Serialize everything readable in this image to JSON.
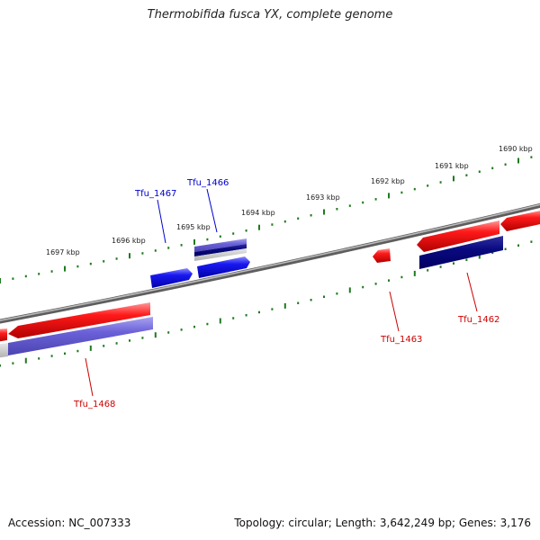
{
  "title": "Thermobifida fusca YX, complete genome",
  "footer": {
    "accession": "Accession: NC_007333",
    "topology": "Topology: circular; Length: 3,642,249 bp; Genes: 3,176"
  },
  "scale_labels": [
    "1697 kbp",
    "1696 kbp",
    "1695 kbp",
    "1694 kbp",
    "1693 kbp",
    "1692 kbp",
    "1691 kbp",
    "1690 kbp"
  ],
  "genes": [
    {
      "name": "Tfu_1468",
      "strand": "reverse",
      "color": "#cc0000"
    },
    {
      "name": "Tfu_1467",
      "strand": "forward",
      "color": "#0000cc"
    },
    {
      "name": "Tfu_1466",
      "strand": "forward",
      "color": "#0000cc"
    },
    {
      "name": "Tfu_1463",
      "strand": "reverse",
      "color": "#cc0000"
    },
    {
      "name": "Tfu_1462",
      "strand": "reverse",
      "color": "#cc0000"
    }
  ],
  "colors": {
    "reverse_strand": "#ee1111",
    "forward_strand": "#1111ee",
    "dark_navy": "#000080",
    "lavender": "#6a5acd",
    "tick": "#1f7a1f",
    "backbone": "#777777"
  }
}
